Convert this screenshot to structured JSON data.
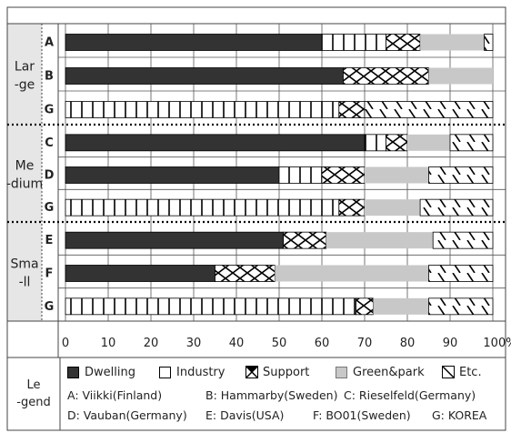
{
  "chart_data": {
    "type": "bar",
    "stacked": true,
    "orientation": "horizontal",
    "groups": [
      {
        "label": "Lar\n-ge",
        "bars": [
          {
            "category": "A",
            "values": {
              "Dwelling": 60,
              "Industry": 15,
              "Support": 8,
              "Green&park": 15,
              "Etc.": 2
            }
          },
          {
            "category": "B",
            "values": {
              "Dwelling": 65,
              "Industry": 0,
              "Support": 20,
              "Green&park": 15,
              "Etc.": 0
            }
          },
          {
            "category": "G",
            "values": {
              "Dwelling": 0,
              "Industry": 64,
              "Support": 6,
              "Green&park": 0,
              "Etc.": 30
            }
          }
        ]
      },
      {
        "label": "Me\n-dium",
        "bars": [
          {
            "category": "C",
            "values": {
              "Dwelling": 70,
              "Industry": 5,
              "Support": 5,
              "Green&park": 10,
              "Etc.": 10
            }
          },
          {
            "category": "D",
            "values": {
              "Dwelling": 50,
              "Industry": 10,
              "Support": 10,
              "Green&park": 15,
              "Etc.": 15
            }
          },
          {
            "category": "G",
            "values": {
              "Dwelling": 0,
              "Industry": 64,
              "Support": 6,
              "Green&park": 13,
              "Etc.": 17
            }
          }
        ]
      },
      {
        "label": "Sma\n-ll",
        "bars": [
          {
            "category": "E",
            "values": {
              "Dwelling": 51,
              "Industry": 0,
              "Support": 10,
              "Green&park": 25,
              "Etc.": 14
            }
          },
          {
            "category": "F",
            "values": {
              "Dwelling": 35,
              "Industry": 0,
              "Support": 14,
              "Green&park": 36,
              "Etc.": 15
            }
          },
          {
            "category": "G",
            "values": {
              "Dwelling": 0,
              "Industry": 68,
              "Support": 4,
              "Green&park": 13,
              "Etc.": 15
            }
          }
        ]
      }
    ],
    "series": [
      {
        "name": "Dwelling",
        "pattern": "solid",
        "color": "#333333"
      },
      {
        "name": "Industry",
        "pattern": "vertical-lines",
        "color": "#ffffff"
      },
      {
        "name": "Support",
        "pattern": "cross",
        "color": "#ffffff"
      },
      {
        "name": "Green&park",
        "pattern": "solid",
        "color": "#c8c8c8"
      },
      {
        "name": "Etc.",
        "pattern": "diagonal",
        "color": "#ffffff"
      }
    ],
    "x_ticks": [
      "0",
      "10",
      "20",
      "30",
      "40",
      "50",
      "60",
      "70",
      "80",
      "90",
      "100%"
    ],
    "xlim": [
      0,
      100
    ],
    "grid": true,
    "legend_position": "bottom"
  },
  "legend": {
    "title_line1": "Le",
    "title_line2": "-gend",
    "items": [
      "Dwelling",
      "Industry",
      "Support",
      "Green&park",
      "Etc."
    ],
    "cities": [
      "A:  Viikki(Finland)",
      "B:  Hammarby(Sweden)",
      "C:  Rieselfeld(Germany)",
      "D:  Vauban(Germany)",
      "E:  Davis(USA)",
      "F:  BO01(Sweden)",
      "G:  KOREA"
    ]
  }
}
